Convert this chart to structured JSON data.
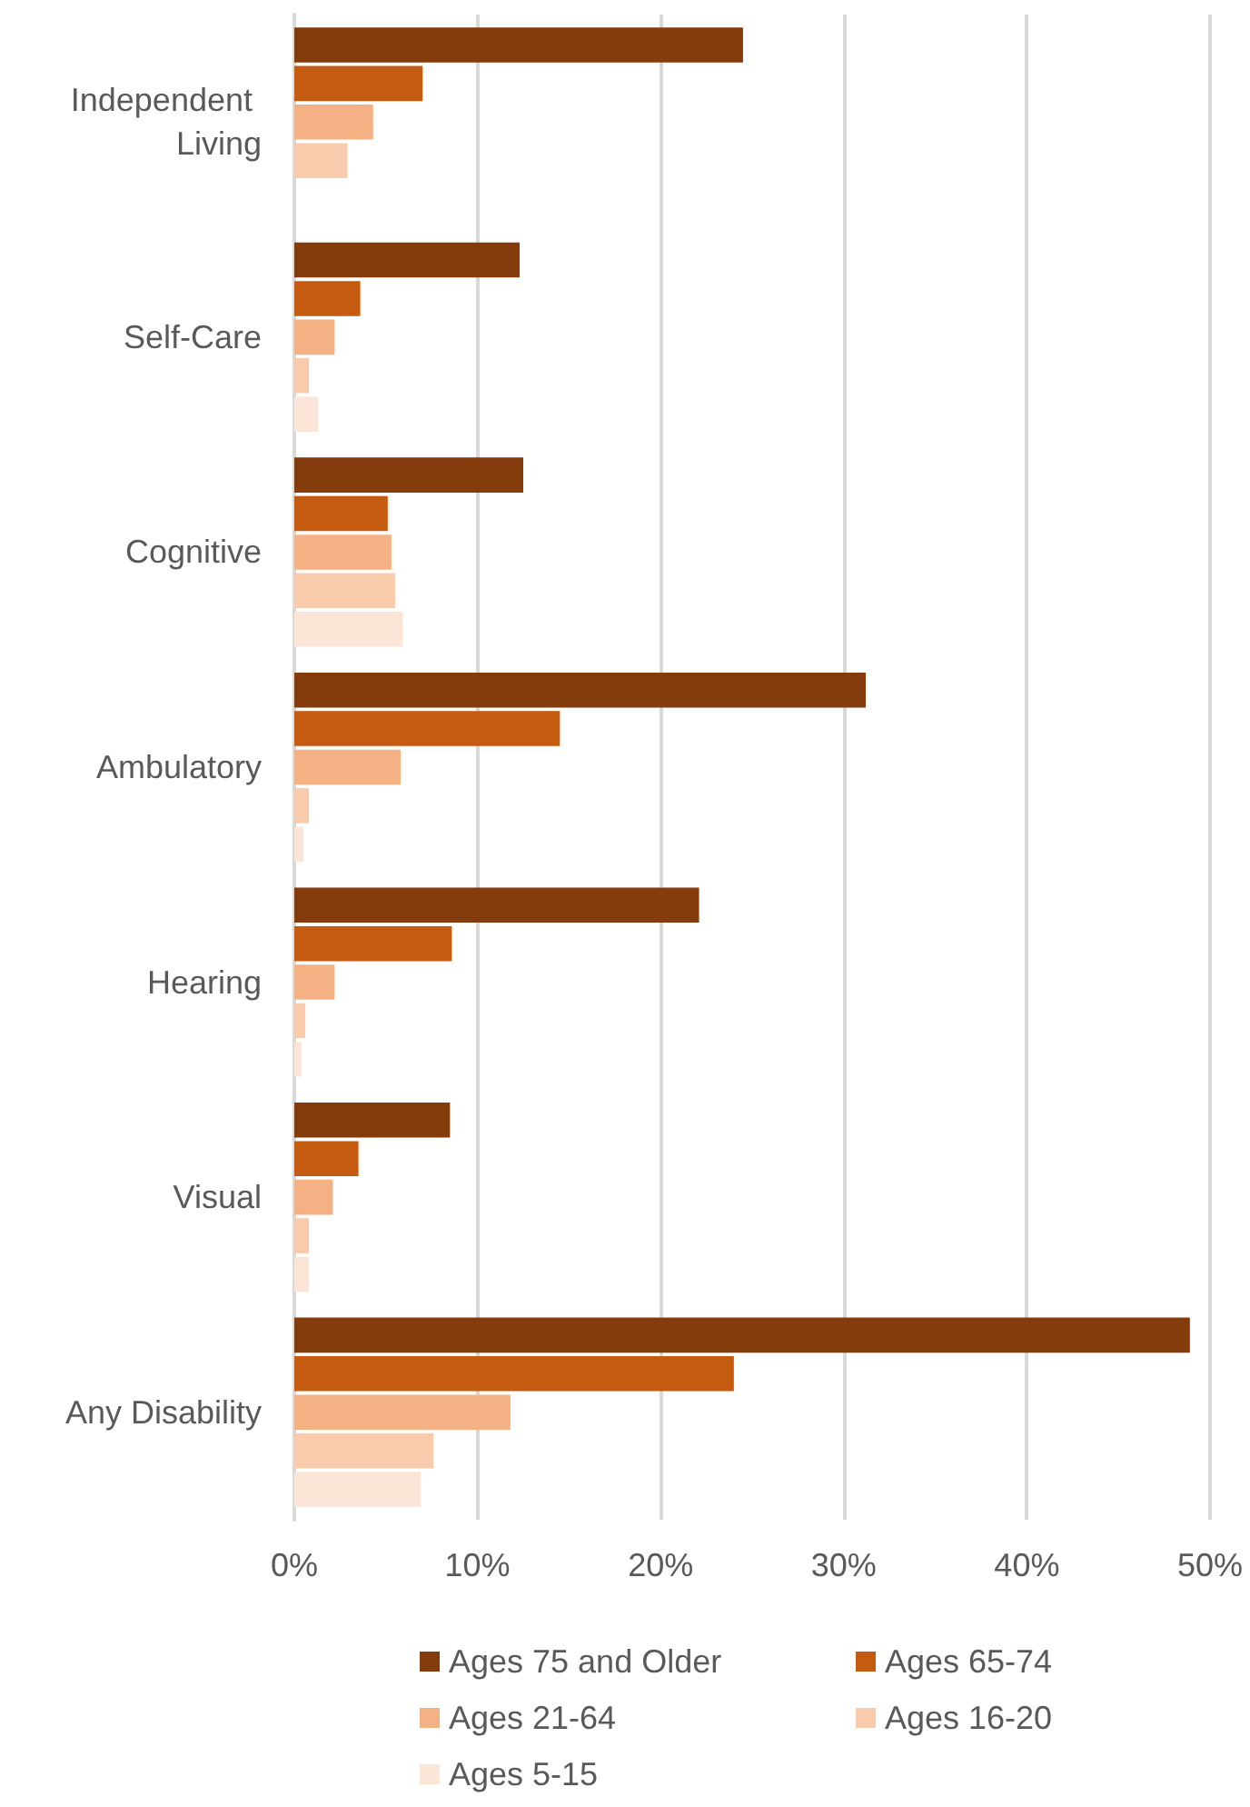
{
  "chart_data": {
    "type": "bar",
    "orientation": "horizontal",
    "categories": [
      "Independent Living",
      "Self-Care",
      "Cognitive",
      "Ambulatory",
      "Hearing",
      "Visual",
      "Any Disability"
    ],
    "series": [
      {
        "name": "Ages 75 and Older",
        "color": "#843c0c",
        "values": [
          24.5,
          12.3,
          12.5,
          31.2,
          22.1,
          8.5,
          48.9
        ]
      },
      {
        "name": "Ages 65-74",
        "color": "#c55a11",
        "values": [
          7.0,
          3.6,
          5.1,
          14.5,
          8.6,
          3.5,
          24.0
        ]
      },
      {
        "name": "Ages 21-64",
        "color": "#f4b183",
        "values": [
          4.3,
          2.2,
          5.3,
          5.8,
          2.2,
          2.1,
          11.8
        ]
      },
      {
        "name": "Ages 16-20",
        "color": "#f8cbad",
        "values": [
          2.9,
          0.8,
          5.5,
          0.8,
          0.6,
          0.8,
          7.6
        ]
      },
      {
        "name": "Ages 5-15",
        "color": "#fbe5d6",
        "values": [
          null,
          1.3,
          5.9,
          0.5,
          0.4,
          0.8,
          6.9
        ]
      }
    ],
    "xlim": [
      0,
      50
    ],
    "xticks": [
      {
        "value": 0,
        "label": "0%"
      },
      {
        "value": 10,
        "label": "10%"
      },
      {
        "value": 20,
        "label": "20%"
      },
      {
        "value": 30,
        "label": "30%"
      },
      {
        "value": 40,
        "label": "40%"
      },
      {
        "value": 50,
        "label": "50%"
      }
    ],
    "grid": "x",
    "legend": "bottom"
  }
}
